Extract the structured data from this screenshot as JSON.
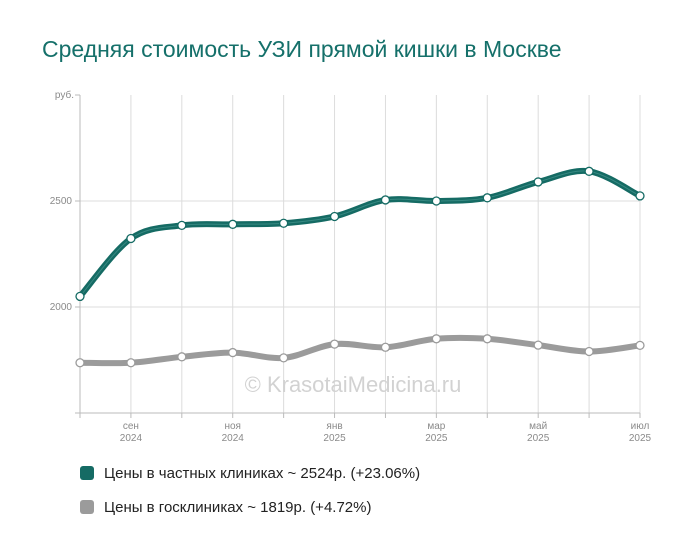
{
  "page": {
    "title": "Средняя стоимость УЗИ прямой кишки в Москве"
  },
  "watermark": "© KrasotaiMedicina.ru",
  "chart_data": {
    "type": "line",
    "title": "Средняя стоимость УЗИ прямой кишки в Москве",
    "ylabel": "руб.",
    "ylim": [
      1500,
      3000
    ],
    "yticks": [
      2000,
      2500
    ],
    "grid": true,
    "legend_position": "bottom",
    "x_ticks": [
      {
        "index": 1,
        "month": "сен",
        "year": "2024"
      },
      {
        "index": 3,
        "month": "ноя",
        "year": "2024"
      },
      {
        "index": 5,
        "month": "янв",
        "year": "2025"
      },
      {
        "index": 7,
        "month": "мар",
        "year": "2025"
      },
      {
        "index": 9,
        "month": "май",
        "year": "2025"
      },
      {
        "index": 11,
        "month": "июл",
        "year": "2025"
      }
    ],
    "x_count": 12,
    "series": [
      {
        "name": "Цены в частных клиниках ~ 2524р. (+23.06%)",
        "color": "#156b64",
        "values": [
          2050,
          2323,
          2385,
          2390,
          2395,
          2427,
          2505,
          2500,
          2515,
          2590,
          2640,
          2524
        ]
      },
      {
        "name": "Цены в госклиниках ~ 1819р. (+4.72%)",
        "color": "#9b9b9b",
        "values": [
          1737,
          1737,
          1765,
          1785,
          1760,
          1825,
          1810,
          1850,
          1850,
          1820,
          1790,
          1819
        ]
      }
    ]
  }
}
